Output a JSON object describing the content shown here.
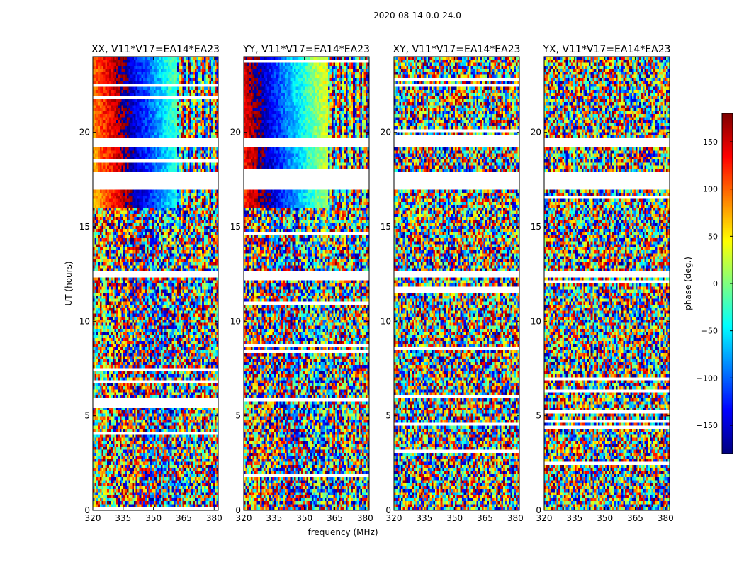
{
  "figure": {
    "suptitle": "2020-08-14 0.0-24.0"
  },
  "chart_data": {
    "type": "heatmap",
    "xlabel": "frequency (MHz)",
    "ylabel": "UT (hours)",
    "xlim": [
      320,
      382
    ],
    "ylim": [
      0,
      24
    ],
    "xticks": [
      320,
      335,
      350,
      365,
      380
    ],
    "yticks": [
      0,
      5,
      10,
      15,
      20
    ],
    "colormap": "jet",
    "colorbar": {
      "label": "phase (deg.)",
      "range": [
        -180,
        180
      ],
      "ticks": [
        150,
        100,
        50,
        0,
        -50,
        -100,
        -150
      ],
      "tick_labels": [
        "150",
        "100",
        "50",
        "0",
        "−50",
        "−100",
        "−150"
      ]
    },
    "panels": [
      {
        "title": "XX, V11*V17=EA14*EA23",
        "pattern": "fringe",
        "offset": 0
      },
      {
        "title": "YY, V11*V17=EA14*EA23",
        "pattern": "fringe",
        "offset": 55
      },
      {
        "title": "XY, V11*V17=EA14*EA23",
        "pattern": "noise",
        "offset": 0
      },
      {
        "title": "YX, V11*V17=EA14*EA23",
        "pattern": "noise",
        "offset": 0
      }
    ],
    "flagged_ut_hours": [
      [
        12.3,
        12.6
      ],
      [
        17.0,
        17.9
      ],
      [
        19.2,
        19.6
      ]
    ]
  }
}
